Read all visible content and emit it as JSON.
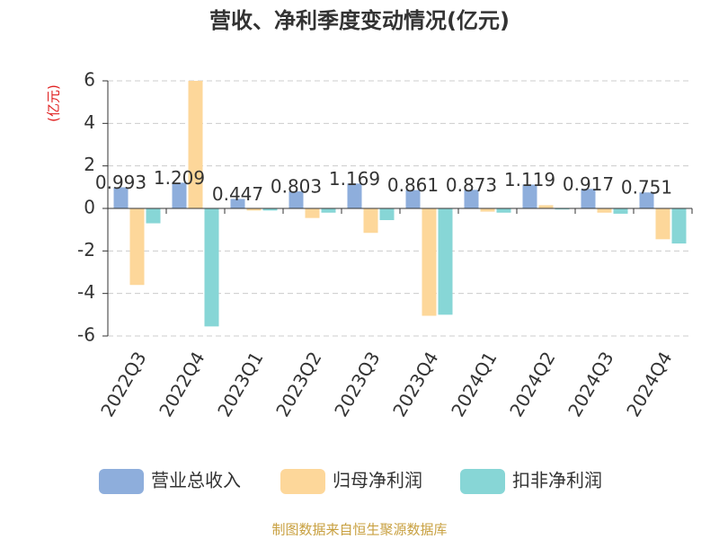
{
  "chart_data": {
    "type": "bar",
    "title": "营收、净利季度变动情况(亿元)",
    "y_label": "(亿元)",
    "categories": [
      "2022Q3",
      "2022Q4",
      "2023Q1",
      "2023Q2",
      "2023Q3",
      "2023Q4",
      "2024Q1",
      "2024Q2",
      "2024Q3",
      "2024Q4"
    ],
    "series": [
      {
        "name": "营业总收入",
        "color": "#8eaedc",
        "values": [
          0.993,
          1.209,
          0.447,
          0.803,
          1.169,
          0.861,
          0.873,
          1.119,
          0.917,
          0.751
        ],
        "labels": true
      },
      {
        "name": "归母净利润",
        "color": "#fdd79a",
        "values": [
          -3.6,
          6.0,
          -0.1,
          -0.45,
          -1.15,
          -5.05,
          -0.15,
          0.15,
          -0.2,
          -1.45
        ]
      },
      {
        "name": "扣非净利润",
        "color": "#87d6d6",
        "values": [
          -0.7,
          -5.55,
          -0.1,
          -0.2,
          -0.55,
          -5.0,
          -0.2,
          -0.05,
          -0.25,
          -1.65
        ]
      }
    ],
    "ylim": [
      -6,
      6
    ],
    "yticks": [
      -6,
      -4,
      -2,
      0,
      2,
      4,
      6
    ],
    "grid": true,
    "source": "制图数据来自恒生聚源数据库"
  }
}
